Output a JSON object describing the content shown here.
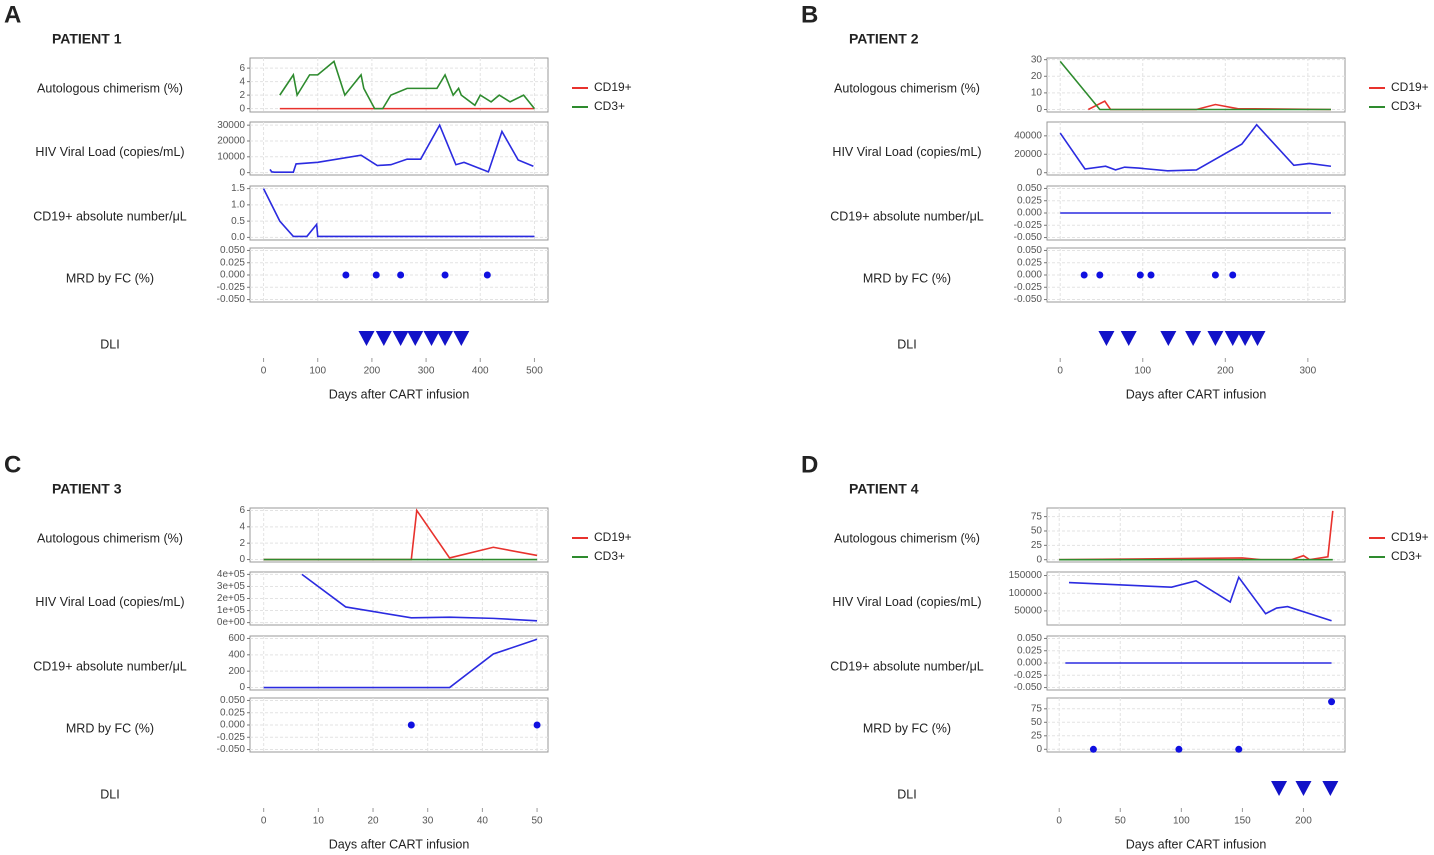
{
  "chart_data": [
    {
      "type": "panel",
      "letter": "A",
      "title": "PATIENT 1",
      "xlabel": "Days after CART infusion",
      "xlim": [
        -25,
        525
      ],
      "xticks": [
        0,
        100,
        200,
        300,
        400,
        500
      ],
      "charts": [
        {
          "type": "line",
          "label": "Autologous chimerism  (%)",
          "ylim": [
            -0.5,
            7.5
          ],
          "yticks": [
            0,
            2,
            4,
            6
          ],
          "series": [
            {
              "name": "CD19+",
              "color": "#e8322d",
              "x": [
                30,
                500
              ],
              "values": [
                0,
                0
              ]
            },
            {
              "name": "CD3+",
              "color": "#2e8b2e",
              "x": [
                30,
                55,
                62,
                85,
                100,
                130,
                150,
                180,
                185,
                205,
                220,
                235,
                265,
                320,
                335,
                350,
                360,
                365,
                390,
                400,
                420,
                435,
                455,
                480,
                500
              ],
              "values": [
                2,
                5,
                2,
                5,
                5,
                7,
                2,
                5,
                3,
                0,
                0,
                2,
                3,
                3,
                5,
                2,
                3,
                2,
                0.5,
                2,
                1,
                2,
                1,
                2,
                0
              ]
            }
          ]
        },
        {
          "type": "line",
          "label": "HIV Viral Load (copies/mL)",
          "ylim": [
            -1500,
            32000
          ],
          "yticks": [
            0,
            10000,
            20000,
            30000
          ],
          "color": "#2b2be0",
          "x": [
            12,
            15,
            20,
            55,
            60,
            100,
            180,
            210,
            235,
            265,
            290,
            325,
            355,
            370,
            415,
            440,
            470,
            498
          ],
          "values": [
            2000,
            500,
            300,
            300,
            5500,
            6500,
            11000,
            4500,
            5000,
            8500,
            8500,
            30000,
            5000,
            6500,
            500,
            26000,
            8000,
            4000
          ]
        },
        {
          "type": "line",
          "label": "CD19+ absolute number/μL",
          "ylim": [
            -0.08,
            1.58
          ],
          "yticks": [
            {
              "value": 0,
              "label": "0.0"
            },
            {
              "value": 0.5,
              "label": "0.5"
            },
            {
              "value": 1,
              "label": "1.0"
            },
            {
              "value": 1.5,
              "label": "1.5"
            }
          ],
          "color": "#2b2be0",
          "x": [
            0,
            30,
            55,
            80,
            98,
            100,
            500
          ],
          "values": [
            1.5,
            0.5,
            0.03,
            0.03,
            0.4,
            0.03,
            0.03
          ]
        },
        {
          "type": "scatter",
          "label": "MRD by FC (%)",
          "ylim": [
            -0.055,
            0.055
          ],
          "yticks": [
            {
              "value": -0.05,
              "label": "-0.050"
            },
            {
              "value": -0.025,
              "label": "-0.025"
            },
            {
              "value": 0,
              "label": "0.000"
            },
            {
              "value": 0.025,
              "label": "0.025"
            },
            {
              "value": 0.05,
              "label": "0.050"
            }
          ],
          "color": "#1010e0",
          "x": [
            152,
            208,
            253,
            335,
            413
          ],
          "values": [
            0,
            0,
            0,
            0,
            0
          ]
        },
        {
          "type": "marker",
          "label": "DLI",
          "color": "#1212c8",
          "x": [
            190,
            222,
            253,
            280,
            310,
            335,
            365
          ]
        }
      ]
    },
    {
      "type": "panel",
      "letter": "B",
      "title": "PATIENT 2",
      "xlabel": "Days after CART infusion",
      "xlim": [
        -16,
        345
      ],
      "xticks": [
        0,
        100,
        200,
        300
      ],
      "charts": [
        {
          "type": "line",
          "label": "Autologous chimerism  (%)",
          "ylim": [
            -1.5,
            31
          ],
          "yticks": [
            0,
            10,
            20,
            30
          ],
          "series": [
            {
              "name": "CD19+",
              "color": "#e8322d",
              "x": [
                34,
                54,
                61,
                165,
                188,
                215,
                328
              ],
              "values": [
                0,
                5,
                0,
                0,
                3,
                0.5,
                0
              ]
            },
            {
              "name": "CD3+",
              "color": "#2e8b2e",
              "x": [
                0,
                48,
                328
              ],
              "values": [
                29,
                0,
                0
              ]
            }
          ]
        },
        {
          "type": "line",
          "label": "HIV Viral Load (copies/mL)",
          "ylim": [
            -2500,
            55000
          ],
          "yticks": [
            0,
            20000,
            40000
          ],
          "color": "#2b2be0",
          "x": [
            0,
            30,
            55,
            67,
            78,
            95,
            130,
            165,
            220,
            238,
            283,
            302,
            328
          ],
          "values": [
            43000,
            4000,
            7000,
            3000,
            6000,
            5000,
            2000,
            3000,
            31000,
            52000,
            8000,
            10000,
            7000
          ]
        },
        {
          "type": "line",
          "label": "CD19+ absolute number/μL",
          "ylim": [
            -0.055,
            0.055
          ],
          "yticks": [
            {
              "value": -0.05,
              "label": "-0.050"
            },
            {
              "value": -0.025,
              "label": "-0.025"
            },
            {
              "value": 0,
              "label": "0.000"
            },
            {
              "value": 0.025,
              "label": "0.025"
            },
            {
              "value": 0.05,
              "label": "0.050"
            }
          ],
          "color": "#2b2be0",
          "x": [
            0,
            328
          ],
          "values": [
            0,
            0
          ]
        },
        {
          "type": "scatter",
          "label": "MRD by FC (%)",
          "ylim": [
            -0.055,
            0.055
          ],
          "yticks": [
            {
              "value": -0.05,
              "label": "-0.050"
            },
            {
              "value": -0.025,
              "label": "-0.025"
            },
            {
              "value": 0,
              "label": "0.000"
            },
            {
              "value": 0.025,
              "label": "0.025"
            },
            {
              "value": 0.05,
              "label": "0.050"
            }
          ],
          "color": "#1010e0",
          "x": [
            29,
            48,
            97,
            110,
            188,
            209
          ],
          "values": [
            0,
            0,
            0,
            0,
            0,
            0
          ]
        },
        {
          "type": "marker",
          "label": "DLI",
          "color": "#1212c8",
          "x": [
            56,
            83,
            131,
            161,
            188,
            209,
            224,
            239
          ]
        }
      ]
    },
    {
      "type": "panel",
      "letter": "C",
      "title": "PATIENT 3",
      "xlabel": "Days after CART infusion",
      "xlim": [
        -2.5,
        52
      ],
      "xticks": [
        0,
        10,
        20,
        30,
        40,
        50
      ],
      "charts": [
        {
          "type": "line",
          "label": "Autologous chimerism  (%)",
          "ylim": [
            -0.3,
            6.3
          ],
          "yticks": [
            0,
            2,
            4,
            6
          ],
          "series": [
            {
              "name": "CD19+",
              "color": "#e8322d",
              "x": [
                0,
                27,
                28,
                34,
                42,
                50
              ],
              "values": [
                0,
                0,
                6,
                0.2,
                1.5,
                0.5
              ]
            },
            {
              "name": "CD3+",
              "color": "#2e8b2e",
              "x": [
                0,
                50
              ],
              "values": [
                0,
                0
              ]
            }
          ]
        },
        {
          "type": "line",
          "label": "HIV Viral Load (copies/mL)",
          "ylim": [
            -20000,
            420000
          ],
          "yticks": [
            {
              "value": 0,
              "label": "0e+00"
            },
            {
              "value": 100000,
              "label": "1e+05"
            },
            {
              "value": 200000,
              "label": "2e+05"
            },
            {
              "value": 300000,
              "label": "3e+05"
            },
            {
              "value": 400000,
              "label": "4e+05"
            }
          ],
          "color": "#2b2be0",
          "x": [
            7,
            15,
            27,
            34,
            42,
            50
          ],
          "values": [
            400000,
            130000,
            40000,
            45000,
            35000,
            15000
          ]
        },
        {
          "type": "line",
          "label": "CD19+ absolute number/μL",
          "ylim": [
            -30,
            630
          ],
          "yticks": [
            0,
            200,
            400,
            600
          ],
          "color": "#2b2be0",
          "x": [
            0,
            34,
            42,
            50
          ],
          "values": [
            0,
            0,
            410,
            590
          ]
        },
        {
          "type": "scatter",
          "label": "MRD by FC (%)",
          "ylim": [
            -0.055,
            0.055
          ],
          "yticks": [
            {
              "value": -0.05,
              "label": "-0.050"
            },
            {
              "value": -0.025,
              "label": "-0.025"
            },
            {
              "value": 0,
              "label": "0.000"
            },
            {
              "value": 0.025,
              "label": "0.025"
            },
            {
              "value": 0.05,
              "label": "0.050"
            }
          ],
          "color": "#1010e0",
          "x": [
            27,
            50
          ],
          "values": [
            0,
            0
          ]
        },
        {
          "type": "marker",
          "label": "DLI",
          "color": "#1212c8",
          "x": []
        }
      ]
    },
    {
      "type": "panel",
      "letter": "D",
      "title": "PATIENT 4",
      "xlabel": "Days after CART infusion",
      "xlim": [
        -10,
        234
      ],
      "xticks": [
        0,
        50,
        100,
        150,
        200
      ],
      "charts": [
        {
          "type": "line",
          "label": "Autologous chimerism  (%)",
          "ylim": [
            -4,
            90
          ],
          "yticks": [
            0,
            25,
            50,
            75
          ],
          "series": [
            {
              "name": "CD19+",
              "color": "#e8322d",
              "x": [
                0,
                100,
                150,
                165,
                190,
                200,
                205,
                220,
                224
              ],
              "values": [
                0,
                2,
                3,
                0,
                0,
                7,
                0,
                5,
                85
              ]
            },
            {
              "name": "CD3+",
              "color": "#2e8b2e",
              "x": [
                0,
                224
              ],
              "values": [
                0,
                0
              ]
            }
          ]
        },
        {
          "type": "line",
          "label": "HIV Viral Load (copies/mL)",
          "ylim": [
            10000,
            160000
          ],
          "yticks": [
            50000,
            100000,
            150000
          ],
          "color": "#2b2be0",
          "x": [
            8,
            92,
            112,
            140,
            147,
            169,
            178,
            187,
            223
          ],
          "values": [
            130000,
            117000,
            135000,
            75000,
            145000,
            42000,
            58000,
            62000,
            22000
          ]
        },
        {
          "type": "line",
          "label": "CD19+ absolute number/μL",
          "ylim": [
            -0.055,
            0.055
          ],
          "yticks": [
            {
              "value": -0.05,
              "label": "-0.050"
            },
            {
              "value": -0.025,
              "label": "-0.025"
            },
            {
              "value": 0,
              "label": "0.000"
            },
            {
              "value": 0.025,
              "label": "0.025"
            },
            {
              "value": 0.05,
              "label": "0.050"
            }
          ],
          "color": "#2b2be0",
          "x": [
            5,
            223
          ],
          "values": [
            0,
            0
          ]
        },
        {
          "type": "scatter",
          "label": "MRD by FC (%)",
          "ylim": [
            -5,
            95
          ],
          "yticks": [
            0,
            25,
            50,
            75
          ],
          "color": "#1010e0",
          "x": [
            28,
            98,
            147,
            223
          ],
          "values": [
            0,
            0,
            0,
            88
          ]
        },
        {
          "type": "marker",
          "label": "DLI",
          "color": "#1212c8",
          "x": [
            180,
            200,
            222
          ]
        }
      ]
    }
  ]
}
